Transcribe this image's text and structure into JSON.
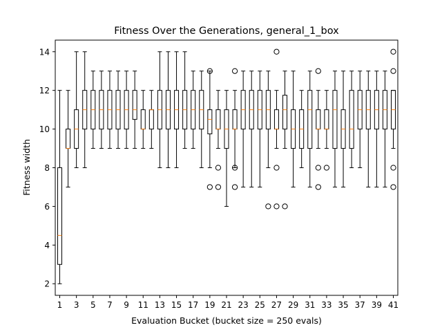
{
  "chart_data": {
    "type": "boxplot",
    "title": "Fitness Over the Generations, general_1_box",
    "xlabel": "Evaluation Bucket (bucket size = 250 evals)",
    "ylabel": "Fitness width",
    "ylim": [
      1.4,
      14.6
    ],
    "yticks": [
      2,
      4,
      6,
      8,
      10,
      12,
      14
    ],
    "xticks": [
      1,
      3,
      5,
      7,
      9,
      11,
      13,
      15,
      17,
      19,
      21,
      23,
      25,
      27,
      29,
      31,
      33,
      35,
      37,
      39,
      41
    ],
    "grid": false,
    "colors": {
      "box": "#000000",
      "median": "#ff7f0e",
      "background": "#ffffff"
    },
    "boxes": [
      {
        "bucket": 1,
        "whislo": 2,
        "q1": 3,
        "med": 4.5,
        "q3": 8,
        "whishi": 12,
        "fliers": []
      },
      {
        "bucket": 2,
        "whislo": 7,
        "q1": 9,
        "med": 9,
        "q3": 10,
        "whishi": 12,
        "fliers": []
      },
      {
        "bucket": 3,
        "whislo": 8,
        "q1": 9,
        "med": 10,
        "q3": 11,
        "whishi": 14,
        "fliers": []
      },
      {
        "bucket": 4,
        "whislo": 8,
        "q1": 10,
        "med": 11,
        "q3": 12,
        "whishi": 14,
        "fliers": []
      },
      {
        "bucket": 5,
        "whislo": 9,
        "q1": 10,
        "med": 11,
        "q3": 12,
        "whishi": 13,
        "fliers": []
      },
      {
        "bucket": 6,
        "whislo": 9,
        "q1": 10,
        "med": 11,
        "q3": 12,
        "whishi": 13,
        "fliers": []
      },
      {
        "bucket": 7,
        "whislo": 9,
        "q1": 10,
        "med": 11,
        "q3": 12,
        "whishi": 13,
        "fliers": []
      },
      {
        "bucket": 8,
        "whislo": 9,
        "q1": 10,
        "med": 11,
        "q3": 12,
        "whishi": 13,
        "fliers": []
      },
      {
        "bucket": 9,
        "whislo": 9,
        "q1": 10,
        "med": 11,
        "q3": 12,
        "whishi": 13,
        "fliers": []
      },
      {
        "bucket": 10,
        "whislo": 9,
        "q1": 10.5,
        "med": 11,
        "q3": 12,
        "whishi": 13,
        "fliers": []
      },
      {
        "bucket": 11,
        "whislo": 9,
        "q1": 10,
        "med": 10,
        "q3": 11,
        "whishi": 12,
        "fliers": []
      },
      {
        "bucket": 12,
        "whislo": 9,
        "q1": 10,
        "med": 11,
        "q3": 11,
        "whishi": 12,
        "fliers": []
      },
      {
        "bucket": 13,
        "whislo": 8,
        "q1": 10,
        "med": 11,
        "q3": 12,
        "whishi": 14,
        "fliers": []
      },
      {
        "bucket": 14,
        "whislo": 8,
        "q1": 10,
        "med": 11,
        "q3": 12,
        "whishi": 14,
        "fliers": []
      },
      {
        "bucket": 15,
        "whislo": 8,
        "q1": 10,
        "med": 11,
        "q3": 12,
        "whishi": 14,
        "fliers": []
      },
      {
        "bucket": 16,
        "whislo": 9,
        "q1": 10,
        "med": 11,
        "q3": 12,
        "whishi": 14,
        "fliers": []
      },
      {
        "bucket": 17,
        "whislo": 9,
        "q1": 10,
        "med": 11,
        "q3": 12,
        "whishi": 13,
        "fliers": []
      },
      {
        "bucket": 18,
        "whislo": 8,
        "q1": 10,
        "med": 11,
        "q3": 12,
        "whishi": 13,
        "fliers": []
      },
      {
        "bucket": 19,
        "whislo": 8,
        "q1": 9.75,
        "med": 10.5,
        "q3": 11,
        "whishi": 13,
        "fliers": [
          7,
          13
        ]
      },
      {
        "bucket": 20,
        "whislo": 9,
        "q1": 10,
        "med": 10,
        "q3": 11,
        "whishi": 12,
        "fliers": [
          7,
          8
        ]
      },
      {
        "bucket": 21,
        "whislo": 6,
        "q1": 9,
        "med": 10,
        "q3": 11,
        "whishi": 12,
        "fliers": []
      },
      {
        "bucket": 22,
        "whislo": 8,
        "q1": 10,
        "med": 10,
        "q3": 11,
        "whishi": 12,
        "fliers": [
          7,
          8,
          13
        ]
      },
      {
        "bucket": 23,
        "whislo": 7,
        "q1": 10,
        "med": 11,
        "q3": 12,
        "whishi": 13,
        "fliers": []
      },
      {
        "bucket": 24,
        "whislo": 7,
        "q1": 10,
        "med": 11,
        "q3": 12,
        "whishi": 13,
        "fliers": []
      },
      {
        "bucket": 25,
        "whislo": 7,
        "q1": 10,
        "med": 11,
        "q3": 12,
        "whishi": 13,
        "fliers": []
      },
      {
        "bucket": 26,
        "whislo": 8,
        "q1": 10,
        "med": 11,
        "q3": 12,
        "whishi": 13,
        "fliers": [
          6
        ]
      },
      {
        "bucket": 27,
        "whislo": 9,
        "q1": 10,
        "med": 10,
        "q3": 11,
        "whishi": 12,
        "fliers": [
          6,
          8,
          14
        ]
      },
      {
        "bucket": 28,
        "whislo": 9,
        "q1": 10,
        "med": 11,
        "q3": 11.75,
        "whishi": 13,
        "fliers": [
          6
        ]
      },
      {
        "bucket": 29,
        "whislo": 7,
        "q1": 9,
        "med": 10,
        "q3": 11,
        "whishi": 13,
        "fliers": []
      },
      {
        "bucket": 30,
        "whislo": 8,
        "q1": 9,
        "med": 10,
        "q3": 11,
        "whishi": 12,
        "fliers": []
      },
      {
        "bucket": 31,
        "whislo": 7,
        "q1": 9,
        "med": 11,
        "q3": 12,
        "whishi": 13,
        "fliers": []
      },
      {
        "bucket": 32,
        "whislo": 9,
        "q1": 10,
        "med": 10,
        "q3": 11,
        "whishi": 12,
        "fliers": [
          7,
          8,
          13
        ]
      },
      {
        "bucket": 33,
        "whislo": 9,
        "q1": 10,
        "med": 10,
        "q3": 11,
        "whishi": 12,
        "fliers": [
          8
        ]
      },
      {
        "bucket": 34,
        "whislo": 7,
        "q1": 9,
        "med": 11,
        "q3": 12,
        "whishi": 13,
        "fliers": []
      },
      {
        "bucket": 35,
        "whislo": 7,
        "q1": 9,
        "med": 10,
        "q3": 11,
        "whishi": 13,
        "fliers": []
      },
      {
        "bucket": 36,
        "whislo": 8,
        "q1": 9,
        "med": 10,
        "q3": 12,
        "whishi": 13,
        "fliers": []
      },
      {
        "bucket": 37,
        "whislo": 8,
        "q1": 10,
        "med": 11,
        "q3": 12,
        "whishi": 13,
        "fliers": []
      },
      {
        "bucket": 38,
        "whislo": 7,
        "q1": 10,
        "med": 11,
        "q3": 12,
        "whishi": 13,
        "fliers": []
      },
      {
        "bucket": 39,
        "whislo": 7,
        "q1": 10,
        "med": 11,
        "q3": 12,
        "whishi": 13,
        "fliers": []
      },
      {
        "bucket": 40,
        "whislo": 7,
        "q1": 10,
        "med": 11,
        "q3": 12,
        "whishi": 13,
        "fliers": []
      },
      {
        "bucket": 41,
        "whislo": 9,
        "q1": 10,
        "med": 11,
        "q3": 12,
        "whishi": 12,
        "fliers": [
          7,
          8,
          13,
          14
        ]
      }
    ]
  }
}
